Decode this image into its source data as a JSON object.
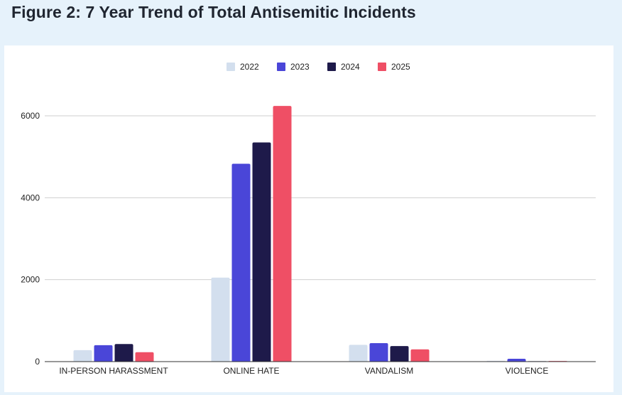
{
  "figure": {
    "title": "Figure 2: 7 Year Trend of Total Antisemitic Incidents"
  },
  "chart_data": {
    "type": "bar",
    "title": "Figure 2: 7 Year Trend of Total Antisemitic Incidents",
    "xlabel": "",
    "ylabel": "",
    "categories": [
      "IN-PERSON HARASSMENT",
      "ONLINE HATE",
      "VANDALISM",
      "VIOLENCE"
    ],
    "series": [
      {
        "name": "2022",
        "color": "#d3dfee",
        "values": [
          280,
          2050,
          410,
          20
        ]
      },
      {
        "name": "2023",
        "color": "#4a46d8",
        "values": [
          400,
          4830,
          450,
          70
        ]
      },
      {
        "name": "2024",
        "color": "#1e1a4a",
        "values": [
          430,
          5350,
          380,
          10
        ]
      },
      {
        "name": "2025",
        "color": "#ef4f65",
        "values": [
          230,
          6240,
          300,
          15
        ]
      }
    ],
    "ylim": [
      0,
      7000
    ],
    "yticks": [
      0,
      2000,
      4000,
      6000
    ],
    "grid": true,
    "legend_position": "top-center"
  }
}
